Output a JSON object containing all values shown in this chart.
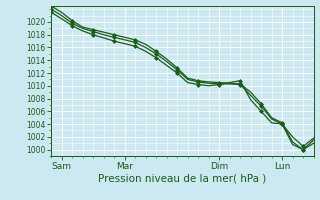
{
  "title": "Pression niveau de la mer( hPa )",
  "ylabel_ticks": [
    1000,
    1002,
    1004,
    1006,
    1008,
    1010,
    1012,
    1014,
    1016,
    1018,
    1020
  ],
  "ylim": [
    999.0,
    1022.5
  ],
  "xlim": [
    0,
    100
  ],
  "xtick_positions": [
    4,
    28,
    64,
    88
  ],
  "xtick_labels": [
    "Sam",
    "Mar",
    "Dim",
    "Lun"
  ],
  "bg_color": "#cce8f0",
  "grid_color": "#ffffff",
  "line_color": "#1a5c1a",
  "line_width": 0.9,
  "marker": "D",
  "marker_size": 2.0,
  "lines": [
    [
      0,
      1022.5,
      4,
      1021.5,
      8,
      1020.2,
      12,
      1019.2,
      16,
      1018.8,
      20,
      1018.4,
      24,
      1018.0,
      28,
      1017.6,
      32,
      1017.2,
      36,
      1016.5,
      40,
      1015.4,
      44,
      1014.2,
      48,
      1012.8,
      52,
      1011.2,
      56,
      1010.8,
      60,
      1010.6,
      64,
      1010.5,
      68,
      1010.4,
      72,
      1010.3,
      76,
      1009.0,
      80,
      1007.2,
      84,
      1005.0,
      88,
      1004.2,
      92,
      1001.2,
      96,
      1000.0,
      100,
      1001.5
    ],
    [
      0,
      1022.0,
      4,
      1021.0,
      8,
      1019.8,
      12,
      1019.0,
      16,
      1018.5,
      20,
      1018.0,
      24,
      1017.6,
      28,
      1017.2,
      32,
      1016.8,
      36,
      1016.0,
      40,
      1015.0,
      44,
      1013.8,
      48,
      1012.5,
      52,
      1011.0,
      56,
      1010.6,
      60,
      1010.4,
      64,
      1010.3,
      68,
      1010.3,
      72,
      1010.2,
      76,
      1008.5,
      80,
      1006.8,
      84,
      1004.8,
      88,
      1004.0,
      92,
      1002.0,
      96,
      1000.5,
      100,
      1001.8
    ],
    [
      0,
      1021.5,
      4,
      1020.5,
      8,
      1019.4,
      12,
      1018.6,
      16,
      1018.0,
      20,
      1017.5,
      24,
      1017.0,
      28,
      1016.6,
      32,
      1016.2,
      36,
      1015.4,
      40,
      1014.4,
      44,
      1013.2,
      48,
      1012.0,
      52,
      1010.5,
      56,
      1010.2,
      60,
      1010.0,
      64,
      1010.2,
      68,
      1010.5,
      72,
      1010.8,
      76,
      1007.8,
      80,
      1006.0,
      84,
      1004.2,
      88,
      1004.0,
      92,
      1000.8,
      96,
      1000.0,
      100,
      1001.0
    ]
  ]
}
